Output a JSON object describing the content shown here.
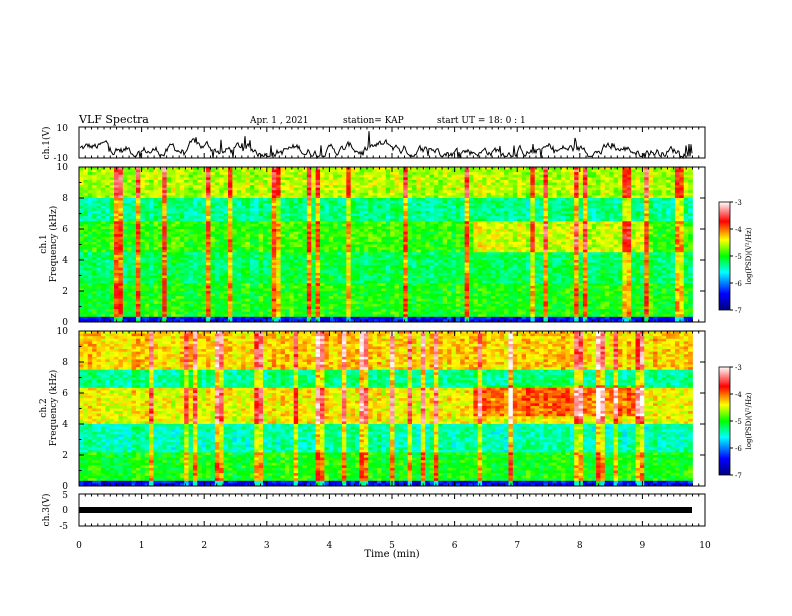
{
  "header": {
    "title": "VLF Spectra",
    "date": "Apr. 1  , 2021",
    "station": "station= KAP",
    "start_time": "start  UT =  18: 0  : 1"
  },
  "chart_data": [
    {
      "type": "line",
      "ylabel": "ch.1(V)",
      "ylim": [
        -10,
        10
      ],
      "yticks": [
        "10",
        "-10"
      ],
      "xlim": [
        0,
        10
      ],
      "description_series": "waveform"
    },
    {
      "type": "heatmap",
      "ylabel": "ch.1\nFrequency (kHz)",
      "ylabel_line1": "ch.1",
      "ylabel_line2": "Frequency (kHz)",
      "ylim": [
        0,
        10
      ],
      "yticks": [
        "0",
        "2",
        "4",
        "6",
        "8",
        "10"
      ],
      "xlim": [
        0,
        10
      ],
      "data_end_min": 9.8,
      "colorbar": {
        "label": "log(PSD)(V²/Hz)",
        "ticks": [
          "-3",
          "-4",
          "-5",
          "-6",
          "-7"
        ],
        "range": [
          -7,
          -3
        ]
      }
    },
    {
      "type": "heatmap",
      "ylabel_line1": "ch.2",
      "ylabel_line2": "Frequency (kHz)",
      "ylim": [
        0,
        10
      ],
      "yticks": [
        "0",
        "2",
        "4",
        "6",
        "8",
        "10"
      ],
      "xlim": [
        0,
        10
      ],
      "data_end_min": 9.8,
      "colorbar": {
        "label": "log(PSD)(V²/Hz)",
        "ticks": [
          "-3",
          "-4",
          "-5",
          "-6",
          "-7"
        ],
        "range": [
          -7,
          -3
        ]
      }
    },
    {
      "type": "line",
      "ylabel": "ch.3(V)",
      "ylim": [
        -5,
        5
      ],
      "yticks": [
        "5",
        "0",
        "-5"
      ],
      "xlim": [
        0,
        10
      ],
      "xticks": [
        "0",
        "1",
        "2",
        "3",
        "4",
        "5",
        "6",
        "7",
        "8",
        "9",
        "10"
      ],
      "xlabel": "Time  (min)"
    }
  ]
}
